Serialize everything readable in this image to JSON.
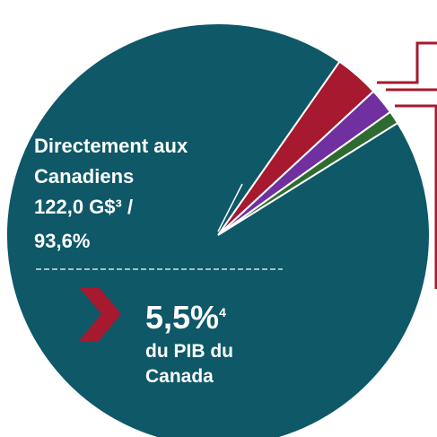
{
  "chart_data": {
    "type": "pie",
    "categories": [
      "Directement aux Canadiens",
      null,
      null,
      null
    ],
    "values": [
      93.6,
      3.4,
      2.0,
      1.0
    ],
    "value_labels": [
      "93,6%",
      null,
      null,
      null
    ],
    "colors": [
      "#0e5868",
      "#a6192e",
      "#7030a0",
      "#2e6b30"
    ],
    "amount_label": "122,0 G$³ /",
    "callout": {
      "value_label": "5,5%",
      "note": "4",
      "text": [
        "du PIB du",
        "Canada"
      ]
    }
  }
}
